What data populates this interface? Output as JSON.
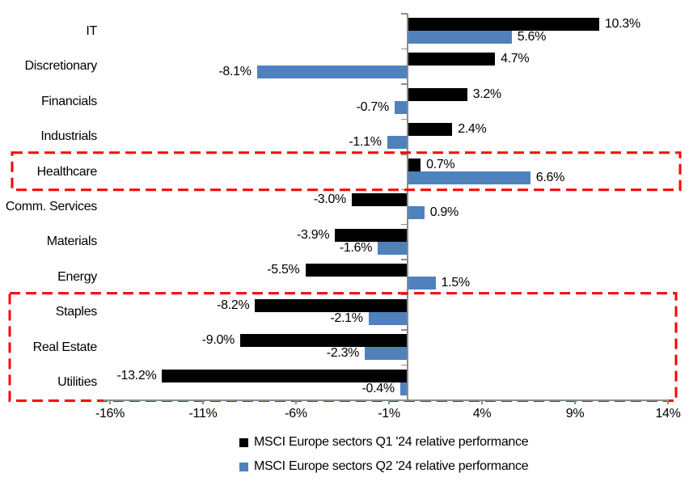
{
  "chart_data": {
    "type": "bar",
    "orientation": "horizontal",
    "unit": "%",
    "categories": [
      "IT",
      "Discretionary",
      "Financials",
      "Industrials",
      "Healthcare",
      "Comm. Services",
      "Materials",
      "Energy",
      "Staples",
      "Real Estate",
      "Utilities"
    ],
    "series": [
      {
        "name": "MSCI Europe sectors Q1 '24 relative performance",
        "color": "#000000",
        "values": [
          10.3,
          4.7,
          3.2,
          2.4,
          0.7,
          -3.0,
          -3.9,
          -5.5,
          -8.2,
          -9.0,
          -13.2
        ]
      },
      {
        "name": "MSCI Europe sectors Q2 '24 relative performance",
        "color": "#4F81BD",
        "values": [
          5.6,
          -8.1,
          -0.7,
          -1.1,
          6.6,
          0.9,
          -1.6,
          1.5,
          -2.1,
          -2.3,
          -0.4
        ]
      }
    ],
    "x_axis": {
      "tick_labels": [
        "-16%",
        "-11%",
        "-6%",
        "-1%",
        "4%",
        "9%",
        "14%"
      ],
      "tick_values": [
        -16,
        -11,
        -6,
        -1,
        4,
        9,
        14
      ],
      "min": -16.3,
      "max": 14
    },
    "value_labels": "each bar labeled with value to one decimal plus % sign",
    "grid": false,
    "legend_position": "bottom",
    "axis_color": "#8c8c8c",
    "highlight_boxes": [
      {
        "sectors": [
          "Healthcare"
        ],
        "color": "#FF0000",
        "style": "dashed"
      },
      {
        "sectors": [
          "Staples",
          "Real Estate",
          "Utilities"
        ],
        "color": "#FF0000",
        "style": "dashed"
      }
    ]
  }
}
